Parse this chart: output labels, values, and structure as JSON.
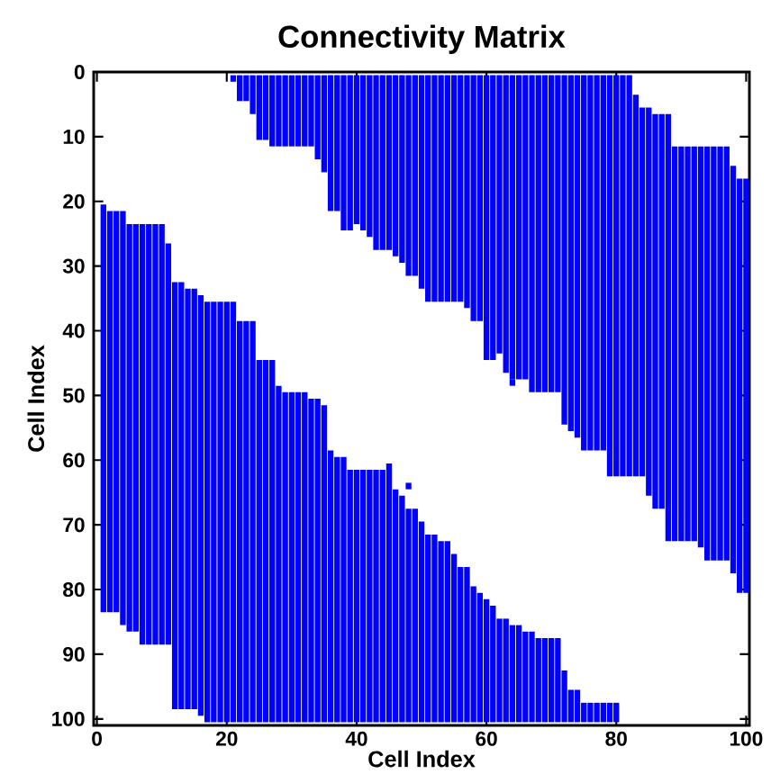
{
  "chart_data": {
    "type": "bar",
    "title": "Connectivity Matrix",
    "xlabel": "Cell Index",
    "ylabel": "Cell Index",
    "categories": [
      "0",
      null,
      null,
      null,
      null,
      null,
      null,
      null,
      null,
      null,
      null,
      null,
      null,
      null,
      null,
      null,
      null,
      null,
      null,
      null,
      "20",
      null,
      null,
      null,
      null,
      null,
      null,
      null,
      null,
      null,
      null,
      null,
      null,
      null,
      null,
      null,
      null,
      null,
      null,
      null,
      "40",
      null,
      null,
      null,
      null,
      null,
      null,
      null,
      null,
      null,
      null,
      null,
      null,
      null,
      null,
      null,
      null,
      null,
      null,
      null,
      "60",
      null,
      null,
      null,
      null,
      null,
      null,
      null,
      null,
      null,
      null,
      null,
      null,
      null,
      null,
      null,
      null,
      null,
      null,
      null,
      "80",
      null,
      null,
      null,
      null,
      null,
      null,
      null,
      null,
      null,
      null,
      null,
      null,
      null,
      null,
      null,
      null,
      null,
      null,
      null,
      "100"
    ],
    "ylim": [
      101,
      0
    ],
    "yticks": [
      0,
      10,
      20,
      30,
      40,
      50,
      60,
      70,
      80,
      90,
      100
    ],
    "series": [
      {
        "color": "#0000ff",
        "base": [
          null,
          20.5,
          21.5,
          21.5,
          21.5,
          23.5,
          23.5,
          23.5,
          23.5,
          23.5,
          23.5,
          26.5,
          32.5,
          32.5,
          33.5,
          33.5,
          34.5,
          35.5,
          35.5,
          35.5,
          35.5,
          35.5,
          38.5,
          38.5,
          38.5,
          44.5,
          44.5,
          44.5,
          48.5,
          49.5,
          49.5,
          49.5,
          49.5,
          50.5,
          50.5,
          51.5,
          58.5,
          59.5,
          59.5,
          61.5,
          61.5,
          61.5,
          61.5,
          61.5,
          61.5,
          60.5,
          64.5,
          65.5,
          67.5,
          67.5,
          69.5,
          71.5,
          71.5,
          72.5,
          72.5,
          74.5,
          76.5,
          76.5,
          79.5,
          80.5,
          81.5,
          82.5,
          84.5,
          84.5,
          85.5,
          85.5,
          86.5,
          86.5,
          87.5,
          87.5,
          87.5,
          87.5,
          92.5,
          95.5,
          95.5,
          97.5,
          97.5,
          97.5,
          97.5,
          97.5,
          97.5,
          null,
          null,
          null,
          null,
          null,
          null,
          null,
          null,
          null,
          null,
          null,
          null,
          null,
          null,
          null,
          null,
          null,
          null,
          null,
          null
        ],
        "values": [
          null,
          63,
          62,
          62,
          64,
          63,
          63,
          65,
          65,
          65,
          65,
          62,
          66,
          66,
          65,
          65,
          65,
          65,
          65,
          65,
          65,
          65,
          62,
          62,
          62,
          56,
          56,
          56,
          52,
          51,
          51,
          51,
          51,
          50,
          50,
          49,
          42,
          41,
          41,
          39,
          39,
          39,
          39,
          39,
          39,
          40,
          36,
          35,
          33,
          33,
          31,
          29,
          29,
          28,
          28,
          26,
          24,
          24,
          21,
          20,
          19,
          18,
          16,
          16,
          15,
          15,
          14,
          14,
          13,
          13,
          13,
          13,
          8,
          5,
          5,
          3,
          3,
          3,
          3,
          3,
          3,
          null,
          null,
          null,
          null,
          null,
          null,
          null,
          null,
          null,
          null,
          null,
          null,
          null,
          null,
          null,
          null,
          null,
          null,
          null,
          null
        ]
      },
      {
        "color": "#0000ff",
        "base": [
          null,
          null,
          null,
          null,
          null,
          null,
          null,
          null,
          null,
          null,
          null,
          null,
          null,
          null,
          null,
          null,
          null,
          null,
          null,
          null,
          null,
          0.5,
          0.5,
          0.5,
          0.5,
          0.5,
          0.5,
          0.5,
          0.5,
          0.5,
          0.5,
          0.5,
          0.5,
          0.5,
          0.5,
          0.5,
          0.5,
          0.5,
          0.5,
          0.5,
          0.5,
          0.5,
          0.5,
          0.5,
          0.5,
          0.5,
          0.5,
          0.5,
          0.5,
          0.5,
          0.5,
          0.5,
          0.5,
          0.5,
          0.5,
          0.5,
          0.5,
          0.5,
          0.5,
          0.5,
          0.5,
          0.5,
          0.5,
          0.5,
          0.5,
          0.5,
          0.5,
          0.5,
          0.5,
          0.5,
          0.5,
          0.5,
          0.5,
          0.5,
          0.5,
          0.5,
          0.5,
          0.5,
          0.5,
          0.5,
          0.5,
          0.5,
          0.5,
          3.5,
          5.5,
          5.5,
          6.5,
          6.5,
          6.5,
          11.5,
          11.5,
          11.5,
          11.5,
          11.5,
          11.5,
          11.5,
          11.5,
          11.5,
          14.5,
          16.5,
          16.5
        ],
        "values": [
          null,
          null,
          null,
          null,
          null,
          null,
          null,
          null,
          null,
          null,
          null,
          null,
          null,
          null,
          null,
          null,
          null,
          null,
          null,
          null,
          null,
          1,
          4,
          4,
          6,
          10,
          10,
          11,
          11,
          11,
          11,
          11,
          11,
          11,
          13,
          15,
          21,
          21,
          24,
          24,
          23,
          24,
          25,
          27,
          27,
          27,
          28,
          29,
          31,
          31,
          33,
          35,
          35,
          35,
          35,
          35,
          35,
          36,
          38,
          38,
          44,
          44,
          43,
          46,
          47,
          47,
          47,
          49,
          49,
          49,
          49,
          49,
          54,
          55,
          56,
          58,
          58,
          58,
          58,
          62,
          62,
          62,
          62,
          59,
          57,
          60,
          61,
          61,
          66,
          61,
          61,
          61,
          61,
          62,
          64,
          64,
          64,
          64,
          63,
          64,
          64
        ]
      },
      {
        "color": "#0000ff",
        "base": [
          null,
          null,
          null,
          null,
          null,
          null,
          null,
          null,
          null,
          null,
          null,
          null,
          null,
          null,
          null,
          null,
          null,
          null,
          null,
          null,
          null,
          null,
          null,
          null,
          null,
          null,
          null,
          null,
          null,
          null,
          null,
          null,
          null,
          null,
          null,
          null,
          null,
          null,
          null,
          null,
          null,
          null,
          null,
          null,
          null,
          null,
          null,
          null,
          63.5,
          null,
          null,
          null,
          null,
          null,
          null,
          null,
          null,
          null,
          null,
          null,
          null,
          null,
          null,
          null,
          47.5,
          null,
          null,
          null,
          null,
          null,
          null,
          null,
          null,
          null,
          null,
          null,
          null,
          null,
          null,
          null,
          null,
          null,
          null,
          null,
          null,
          null,
          null,
          null,
          null,
          null,
          null,
          null,
          null,
          null,
          null,
          null,
          null,
          null,
          null,
          null,
          null
        ],
        "values": [
          null,
          null,
          null,
          null,
          null,
          null,
          null,
          null,
          null,
          null,
          null,
          null,
          null,
          null,
          null,
          null,
          null,
          null,
          null,
          null,
          null,
          null,
          null,
          null,
          null,
          null,
          null,
          null,
          null,
          null,
          null,
          null,
          null,
          null,
          null,
          null,
          null,
          null,
          null,
          null,
          null,
          null,
          null,
          null,
          null,
          null,
          null,
          null,
          1,
          null,
          null,
          null,
          null,
          null,
          null,
          null,
          null,
          null,
          null,
          null,
          null,
          null,
          null,
          null,
          1,
          null,
          null,
          null,
          null,
          null,
          null,
          null,
          null,
          null,
          null,
          null,
          null,
          null,
          null,
          null,
          null,
          null,
          null,
          null,
          null,
          null,
          null,
          null,
          null,
          null,
          null,
          null,
          null,
          null,
          null,
          null,
          null,
          null,
          null,
          null,
          null
        ]
      }
    ]
  }
}
